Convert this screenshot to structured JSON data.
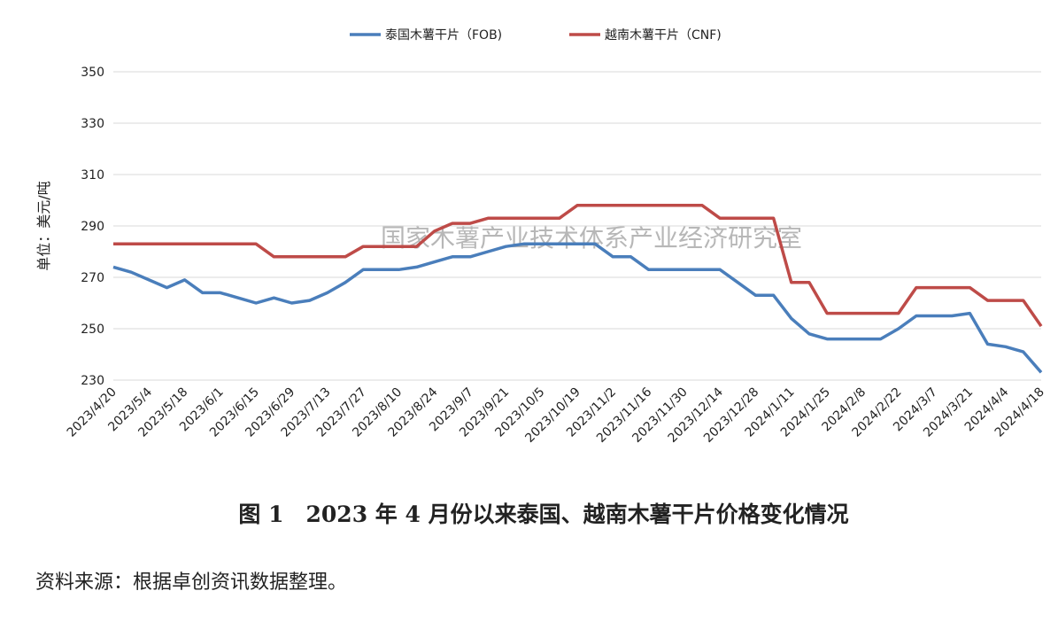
{
  "chart_data": {
    "type": "line",
    "title": "图 1　2023 年 4 月份以来泰国、越南木薯干片价格变化情况",
    "source": "资料来源：根据卓创资讯数据整理。",
    "watermark": "国家木薯产业技术体系产业经济研究室",
    "y_label": "单位：美元/吨",
    "categories": [
      "2023/4/20",
      null,
      "2023/5/4",
      null,
      "2023/5/18",
      null,
      "2023/6/1",
      null,
      "2023/6/15",
      null,
      "2023/6/29",
      null,
      "2023/7/13",
      null,
      "2023/7/27",
      null,
      "2023/8/10",
      null,
      "2023/8/24",
      null,
      "2023/9/7",
      null,
      "2023/9/21",
      null,
      "2023/10/5",
      null,
      "2023/10/19",
      null,
      "2023/11/2",
      null,
      "2023/11/16",
      null,
      "2023/11/30",
      null,
      "2023/12/14",
      null,
      "2023/12/28",
      null,
      "2024/1/11",
      null,
      "2024/1/25",
      null,
      "2024/2/8",
      null,
      "2024/2/22",
      null,
      "2024/3/7",
      null,
      "2024/3/21",
      null,
      "2024/4/4",
      null,
      "2024/4/18"
    ],
    "series": [
      {
        "name": "泰国木薯干片（FOB)",
        "color": "#4a7ebb",
        "values": [
          274,
          272,
          269,
          266,
          269,
          264,
          264,
          262,
          260,
          262,
          260,
          261,
          264,
          268,
          273,
          273,
          273,
          274,
          276,
          278,
          278,
          280,
          282,
          283,
          283,
          283,
          283,
          283,
          278,
          278,
          273,
          273,
          273,
          273,
          273,
          268,
          263,
          263,
          254,
          248,
          246,
          246,
          246,
          246,
          250,
          255,
          255,
          255,
          256,
          244,
          243,
          241,
          233
        ]
      },
      {
        "name": "越南木薯干片（CNF)",
        "color": "#be4b48",
        "values": [
          283,
          283,
          283,
          283,
          283,
          283,
          283,
          283,
          283,
          278,
          278,
          278,
          278,
          278,
          282,
          282,
          282,
          282,
          288,
          291,
          291,
          293,
          293,
          293,
          293,
          293,
          298,
          298,
          298,
          298,
          298,
          298,
          298,
          298,
          293,
          293,
          293,
          293,
          268,
          268,
          256,
          256,
          256,
          256,
          256,
          266,
          266,
          266,
          266,
          261,
          261,
          261,
          251
        ]
      }
    ],
    "ylim": [
      230,
      350
    ],
    "yticks": [
      230,
      250,
      270,
      290,
      310,
      330,
      350
    ],
    "grid": true
  }
}
